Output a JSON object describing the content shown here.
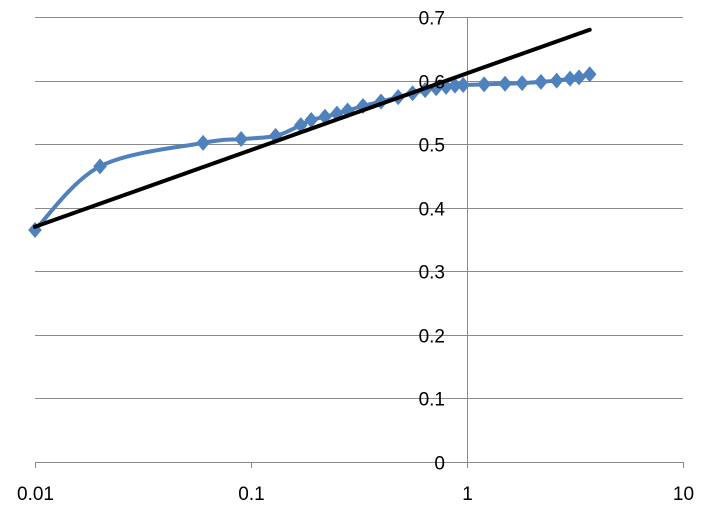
{
  "chart_data": {
    "type": "scatter",
    "title": "",
    "xlabel": "",
    "ylabel": "",
    "x_scale": "log",
    "xlim": [
      0.01,
      10
    ],
    "ylim": [
      0,
      0.7
    ],
    "grid": "horizontal",
    "x_ticks": [
      0.01,
      0.1,
      1,
      10
    ],
    "x_tick_labels": [
      "0.01",
      "0.1",
      "1",
      "10"
    ],
    "y_ticks": [
      0,
      0.1,
      0.2,
      0.3,
      0.4,
      0.5,
      0.6,
      0.7
    ],
    "y_tick_labels": [
      "0",
      "0.1",
      "0.2",
      "0.3",
      "0.4",
      "0.5",
      "0.6",
      "0.7"
    ],
    "colors": {
      "series": "#4f81bd",
      "trend": "#000000",
      "grid": "#8a8a8a"
    },
    "series": [
      {
        "style": "smoothed line with diamond markers",
        "points": [
          [
            0.01,
            0.365
          ],
          [
            0.02,
            0.465
          ],
          [
            0.06,
            0.502
          ],
          [
            0.09,
            0.508
          ],
          [
            0.13,
            0.513
          ],
          [
            0.17,
            0.53
          ],
          [
            0.19,
            0.538
          ],
          [
            0.22,
            0.543
          ],
          [
            0.25,
            0.548
          ],
          [
            0.28,
            0.553
          ],
          [
            0.33,
            0.56
          ],
          [
            0.4,
            0.567
          ],
          [
            0.48,
            0.574
          ],
          [
            0.56,
            0.58
          ],
          [
            0.64,
            0.585
          ],
          [
            0.72,
            0.588
          ],
          [
            0.8,
            0.59
          ],
          [
            0.88,
            0.592
          ],
          [
            0.96,
            0.593
          ],
          [
            1.2,
            0.594
          ],
          [
            1.5,
            0.595
          ],
          [
            1.8,
            0.596
          ],
          [
            2.2,
            0.598
          ],
          [
            2.6,
            0.6
          ],
          [
            3.0,
            0.603
          ],
          [
            3.3,
            0.605
          ],
          [
            3.7,
            0.61
          ]
        ]
      }
    ],
    "trendline": {
      "style": "straight line",
      "points": [
        [
          0.01,
          0.37
        ],
        [
          3.7,
          0.68
        ]
      ]
    }
  }
}
